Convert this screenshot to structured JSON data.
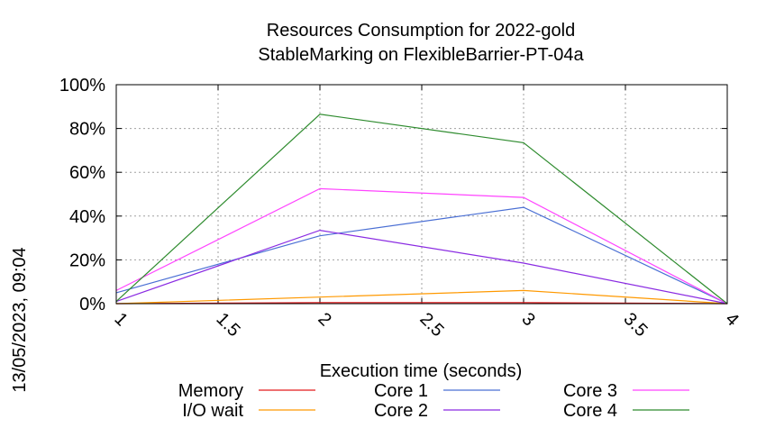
{
  "side_label": "13/05/2023, 09:04",
  "chart_data": {
    "type": "line",
    "title_lines": [
      "Resources Consumption for 2022-gold",
      "StableMarking on FlexibleBarrier-PT-04a"
    ],
    "xlabel": "Execution time (seconds)",
    "ylabel": "",
    "xlim": [
      1,
      4
    ],
    "ylim": [
      0,
      100
    ],
    "x_ticks": [
      "1",
      "1.5",
      "2",
      "2.5",
      "3",
      "3.5",
      "4"
    ],
    "y_ticks": [
      "0%",
      "20%",
      "40%",
      "60%",
      "80%",
      "100%"
    ],
    "grid": true,
    "legend_position": "bottom",
    "x": [
      1,
      2,
      3,
      4
    ],
    "series": [
      {
        "name": "Memory",
        "color": "#e41a1c",
        "values": [
          0,
          0.5,
          0.5,
          0
        ]
      },
      {
        "name": "I/O wait",
        "color": "#ff9900",
        "values": [
          0,
          3,
          6,
          0
        ]
      },
      {
        "name": "Core 1",
        "color": "#4a6fd4",
        "values": [
          5,
          31,
          44,
          0
        ]
      },
      {
        "name": "Core 2",
        "color": "#8a2be2",
        "values": [
          1,
          33.5,
          18.5,
          0
        ]
      },
      {
        "name": "Core 3",
        "color": "#ff44ff",
        "values": [
          6,
          52.5,
          48.5,
          0
        ]
      },
      {
        "name": "Core 4",
        "color": "#2e8b2e",
        "values": [
          1,
          86.5,
          73.5,
          0
        ]
      }
    ]
  }
}
